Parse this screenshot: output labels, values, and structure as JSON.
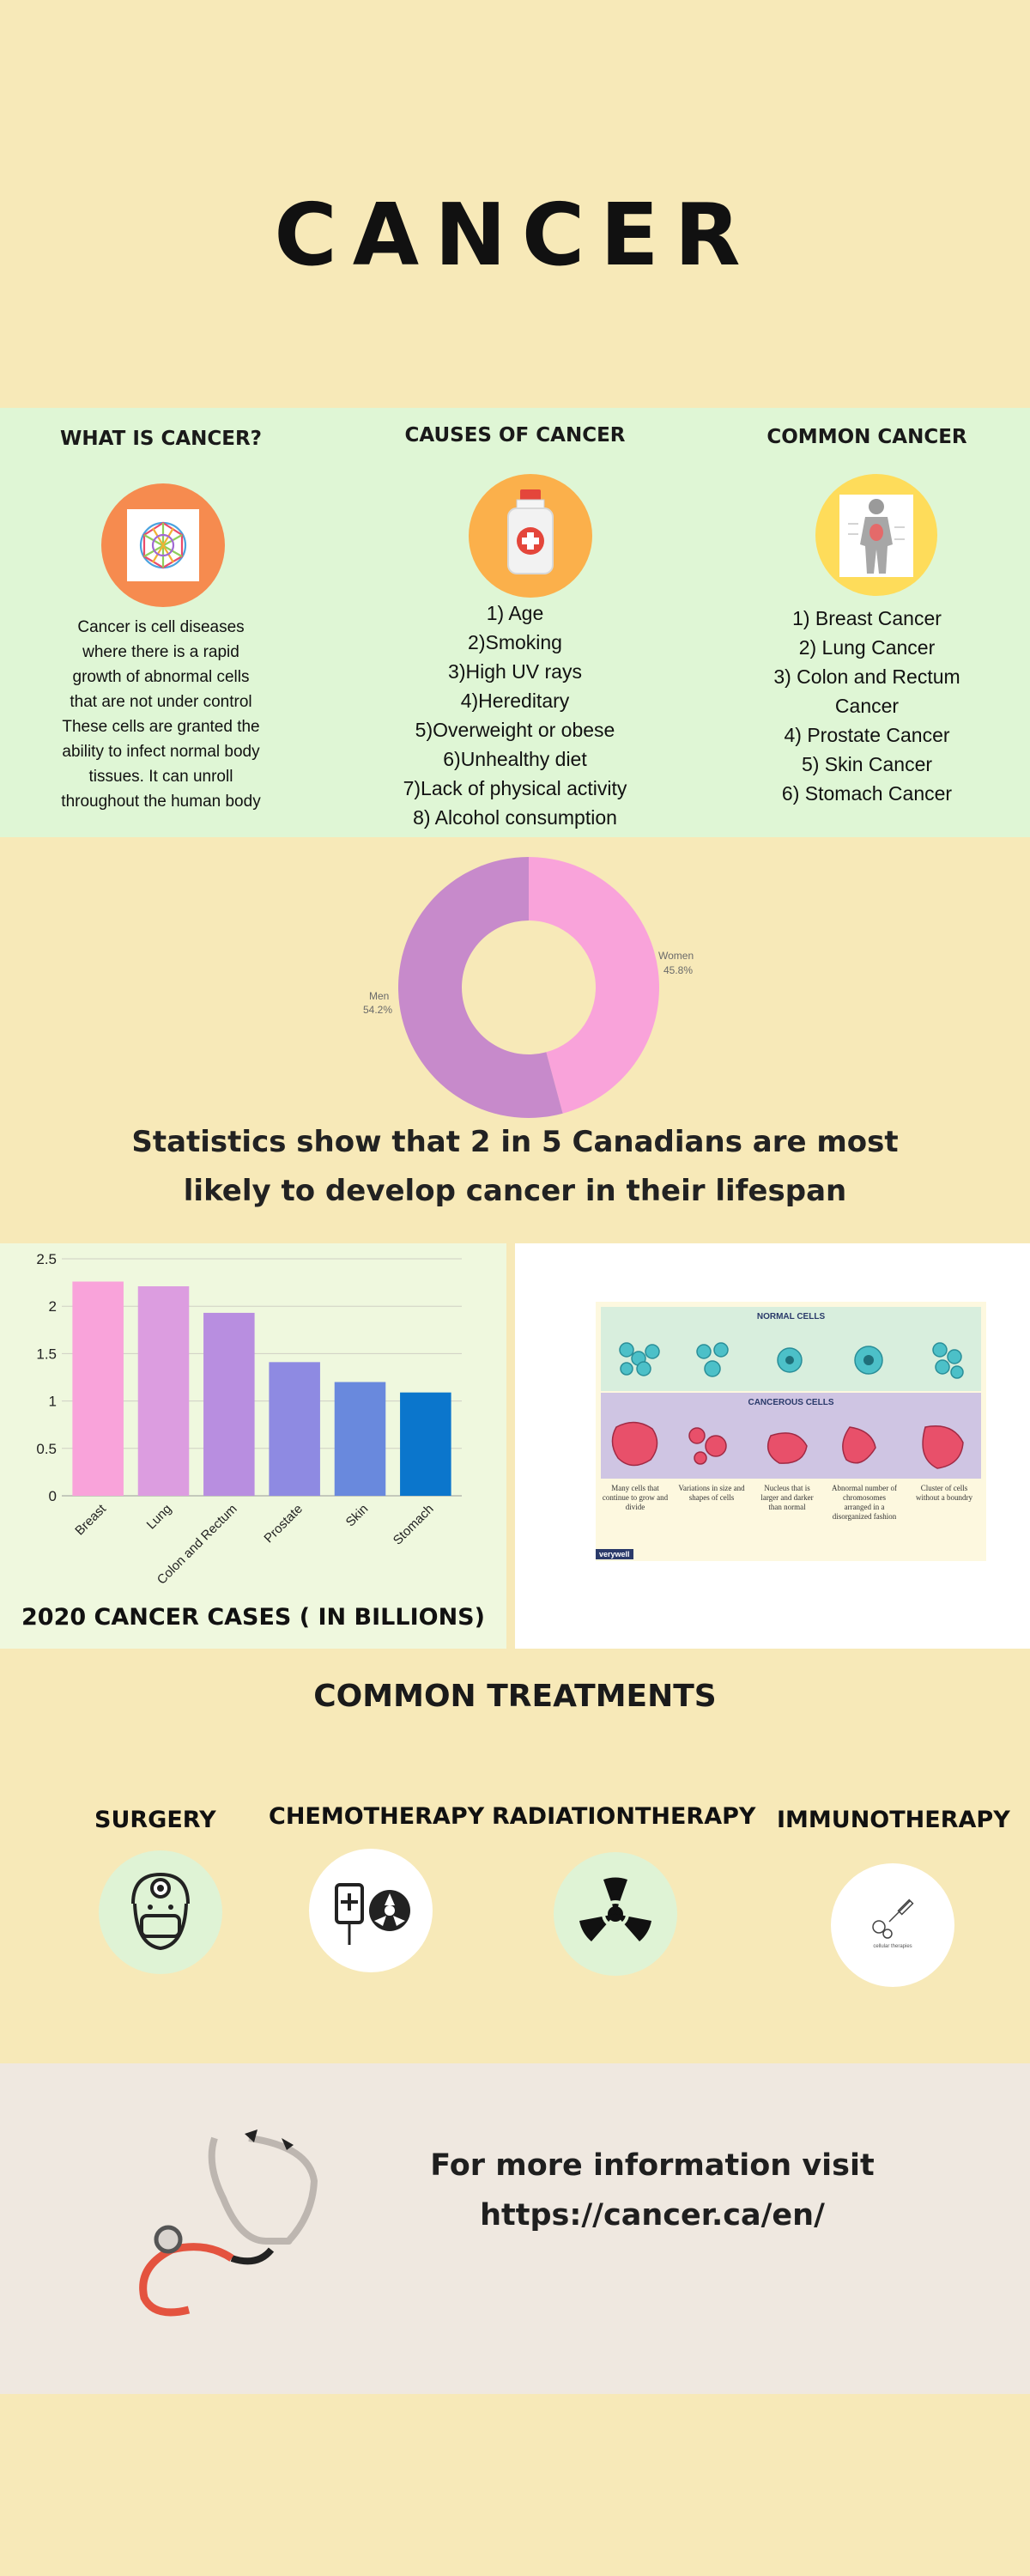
{
  "title": "CANCER",
  "columns": {
    "what": {
      "heading": "WHAT IS CANCER?",
      "icon": "cell-network-icon",
      "lines": [
        "Cancer is cell diseases",
        "where there is a rapid",
        "growth of abnormal cells",
        "that are not under control",
        "These cells are granted the",
        "ability to infect normal body",
        "tissues. It can unroll",
        "throughout the human body"
      ]
    },
    "causes": {
      "heading": "CAUSES OF CANCER",
      "icon": "medicine-bottle-icon",
      "items": [
        "1) Age",
        "2)Smoking",
        "3)High UV rays",
        "4)Hereditary",
        "5)Overweight or obese",
        "6)Unhealthy diet",
        "7)Lack of physical activity",
        "8) Alcohol consumption"
      ]
    },
    "common": {
      "heading": "COMMON CANCER",
      "icon": "body-anatomy-icon",
      "items": [
        "1) Breast Cancer",
        "2) Lung Cancer",
        "3) Colon and Rectum",
        "Cancer",
        "4) Prostate Cancer",
        "5) Skin Cancer",
        "6) Stomach Cancer"
      ]
    }
  },
  "donut": {
    "segments": [
      {
        "label": "Women",
        "value": 45.8,
        "display": "45.8%",
        "color": "#f9a3da"
      },
      {
        "label": "Men",
        "value": 54.2,
        "display": "54.2%",
        "color": "#c78acb"
      }
    ]
  },
  "statistic": [
    "Statistics show that 2 in 5 Canadians are most",
    "likely to develop cancer in their lifespan"
  ],
  "chart_data": {
    "type": "bar",
    "title": "2020 CANCER CASES ( IN BILLIONS)",
    "categories": [
      "Breast",
      "Lung",
      "Colon and Rectum",
      "Prostate",
      "Skin",
      "Stomach"
    ],
    "values": [
      2.26,
      2.21,
      1.93,
      1.41,
      1.2,
      1.09
    ],
    "colors": [
      "#f9a3da",
      "#dc9de0",
      "#b88ee0",
      "#8e8ae2",
      "#6989dd",
      "#0b76cc"
    ],
    "ylim": [
      0,
      2.5
    ],
    "yticks": [
      "0",
      "0.5",
      "1",
      "1.5",
      "2",
      "2.5"
    ],
    "grid": true
  },
  "cells_image": {
    "normal_title": "NORMAL CELLS",
    "cancer_title": "CANCEROUS CELLS",
    "captions": [
      "Many cells that continue to grow and divide",
      "Variations in size and shapes of cells",
      "Nucleus that is larger and darker than normal",
      "Abnormal number of chromosomes arranged in a disorganized fashion",
      "Cluster of cells without a boundry"
    ],
    "brand": "verywell"
  },
  "treatments": {
    "heading": "COMMON TREATMENTS",
    "items": [
      {
        "label": "SURGERY",
        "icon": "surgeon-icon"
      },
      {
        "label": "CHEMOTHERAPY",
        "icon": "iv-drip-icon"
      },
      {
        "label": "RADIATIONTHERAPY",
        "icon": "radiation-icon"
      },
      {
        "label": "IMMUNOTHERAPY",
        "icon": "syringe-icon",
        "caption": "cellular therapies"
      }
    ]
  },
  "footer": {
    "line1": "For more information visit",
    "line2": "https://cancer.ca/en/",
    "icon": "stethoscope-icon"
  }
}
